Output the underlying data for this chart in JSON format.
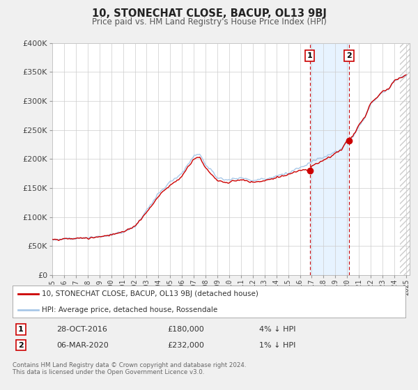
{
  "title": "10, STONECHAT CLOSE, BACUP, OL13 9BJ",
  "subtitle": "Price paid vs. HM Land Registry's House Price Index (HPI)",
  "ylim": [
    0,
    400000
  ],
  "xlim": [
    1995.0,
    2025.3
  ],
  "yticks": [
    0,
    50000,
    100000,
    150000,
    200000,
    250000,
    300000,
    350000,
    400000
  ],
  "ytick_labels": [
    "£0",
    "£50K",
    "£100K",
    "£150K",
    "£200K",
    "£250K",
    "£300K",
    "£350K",
    "£400K"
  ],
  "xticks": [
    1995,
    1996,
    1997,
    1998,
    1999,
    2000,
    2001,
    2002,
    2003,
    2004,
    2005,
    2006,
    2007,
    2008,
    2009,
    2010,
    2011,
    2012,
    2013,
    2014,
    2015,
    2016,
    2017,
    2018,
    2019,
    2020,
    2021,
    2022,
    2023,
    2024,
    2025
  ],
  "hpi_color": "#a8c8e8",
  "price_color": "#cc0000",
  "shade_color": "#ddeeff",
  "hatch_color": "#cccccc",
  "marker1_date": 2016.83,
  "marker1_value": 180000,
  "marker1_label": "1",
  "marker1_date_str": "28-OCT-2016",
  "marker1_price": "£180,000",
  "marker1_pct": "4% ↓ HPI",
  "marker2_date": 2020.17,
  "marker2_value": 232000,
  "marker2_label": "2",
  "marker2_date_str": "06-MAR-2020",
  "marker2_price": "£232,000",
  "marker2_pct": "1% ↓ HPI",
  "legend_line1": "10, STONECHAT CLOSE, BACUP, OL13 9BJ (detached house)",
  "legend_line2": "HPI: Average price, detached house, Rossendale",
  "footnote": "Contains HM Land Registry data © Crown copyright and database right 2024.\nThis data is licensed under the Open Government Licence v3.0.",
  "background_color": "#f0f0f0",
  "plot_background": "#ffffff",
  "grid_color": "#cccccc"
}
